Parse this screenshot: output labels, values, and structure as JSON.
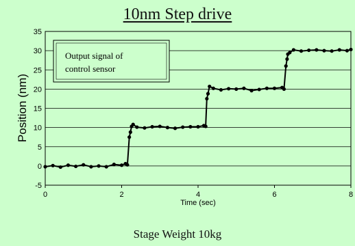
{
  "chart_data": {
    "type": "line",
    "title": "10nm Step drive",
    "xlabel": "Time (sec)",
    "ylabel": "Position (nm)",
    "footer": "Stage Weight  10kg",
    "annotation": [
      "Output signal of",
      "control sensor"
    ],
    "xlim": [
      0,
      8
    ],
    "ylim": [
      -5,
      35
    ],
    "xticks": [
      0,
      2,
      4,
      6,
      8
    ],
    "yticks": [
      -5,
      0,
      5,
      10,
      15,
      20,
      25,
      30,
      35
    ],
    "grid": "horizontal",
    "series": [
      {
        "points": [
          [
            0.0,
            -0.2
          ],
          [
            0.2,
            0.1
          ],
          [
            0.4,
            -0.3
          ],
          [
            0.6,
            0.2
          ],
          [
            0.8,
            -0.1
          ],
          [
            1.0,
            0.3
          ],
          [
            1.2,
            -0.2
          ],
          [
            1.4,
            0.0
          ],
          [
            1.6,
            -0.2
          ],
          [
            1.8,
            0.4
          ],
          [
            2.0,
            0.2
          ],
          [
            2.1,
            0.6
          ],
          [
            2.15,
            0.3
          ],
          [
            2.2,
            7.5
          ],
          [
            2.23,
            8.8
          ],
          [
            2.26,
            10.3
          ],
          [
            2.3,
            10.8
          ],
          [
            2.4,
            10.1
          ],
          [
            2.6,
            9.9
          ],
          [
            2.8,
            10.2
          ],
          [
            3.0,
            10.3
          ],
          [
            3.2,
            10.0
          ],
          [
            3.4,
            9.8
          ],
          [
            3.6,
            10.1
          ],
          [
            3.8,
            10.2
          ],
          [
            4.0,
            10.2
          ],
          [
            4.15,
            10.5
          ],
          [
            4.2,
            10.3
          ],
          [
            4.23,
            17.5
          ],
          [
            4.26,
            18.8
          ],
          [
            4.3,
            20.7
          ],
          [
            4.4,
            20.2
          ],
          [
            4.6,
            19.8
          ],
          [
            4.8,
            20.1
          ],
          [
            5.0,
            20.0
          ],
          [
            5.2,
            20.2
          ],
          [
            5.4,
            19.6
          ],
          [
            5.6,
            19.9
          ],
          [
            5.8,
            20.2
          ],
          [
            6.0,
            20.2
          ],
          [
            6.2,
            20.4
          ],
          [
            6.25,
            20.0
          ],
          [
            6.3,
            26.0
          ],
          [
            6.33,
            27.8
          ],
          [
            6.35,
            29.1
          ],
          [
            6.4,
            29.5
          ],
          [
            6.5,
            30.2
          ],
          [
            6.7,
            29.9
          ],
          [
            6.9,
            30.1
          ],
          [
            7.1,
            30.2
          ],
          [
            7.3,
            30.0
          ],
          [
            7.5,
            29.9
          ],
          [
            7.7,
            30.2
          ],
          [
            7.9,
            30.0
          ],
          [
            8.0,
            30.3
          ]
        ]
      }
    ]
  }
}
